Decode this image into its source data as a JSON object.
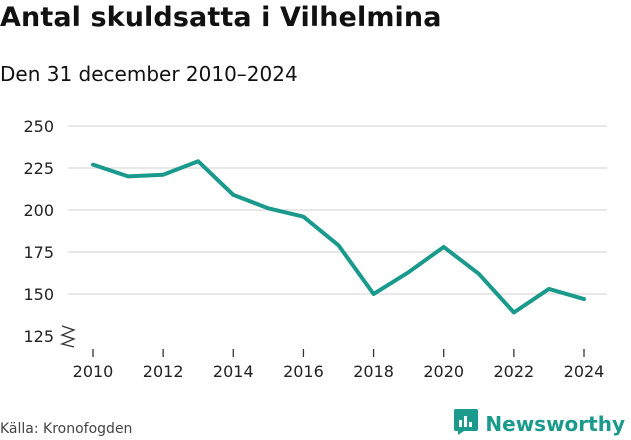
{
  "header": {
    "title": "Antal skuldsatta i Vilhelmina",
    "subtitle": "Den 31 december 2010–2024"
  },
  "footer": {
    "source": "Källa: Kronofogden",
    "brand": "Newsworthy"
  },
  "icons": {
    "brand_logo": "bar-chart-speech-bubble-icon",
    "axis_break": "zigzag-axis-break-icon"
  },
  "colors": {
    "line": "#1a9a8c",
    "grid": "#d9d9d9",
    "text": "#111111",
    "brand": "#1a9a8c"
  },
  "chart_data": {
    "type": "line",
    "title": "Antal skuldsatta i Vilhelmina",
    "subtitle": "Den 31 december 2010–2024",
    "xlabel": "",
    "ylabel": "",
    "x": [
      2010,
      2011,
      2012,
      2013,
      2014,
      2015,
      2016,
      2017,
      2018,
      2019,
      2020,
      2021,
      2022,
      2023,
      2024
    ],
    "series": [
      {
        "values": [
          227,
          220,
          221,
          229,
          209,
          201,
          196,
          179,
          150,
          163,
          178,
          162,
          139,
          153,
          147
        ]
      }
    ],
    "x_ticks": [
      "2010",
      "2012",
      "2014",
      "2016",
      "2018",
      "2020",
      "2022",
      "2024"
    ],
    "y_ticks": [
      "125",
      "150",
      "175",
      "200",
      "225",
      "250"
    ],
    "xlim": [
      2010,
      2024
    ],
    "ylim": [
      125,
      250
    ],
    "axis_break": true,
    "grid": true
  }
}
